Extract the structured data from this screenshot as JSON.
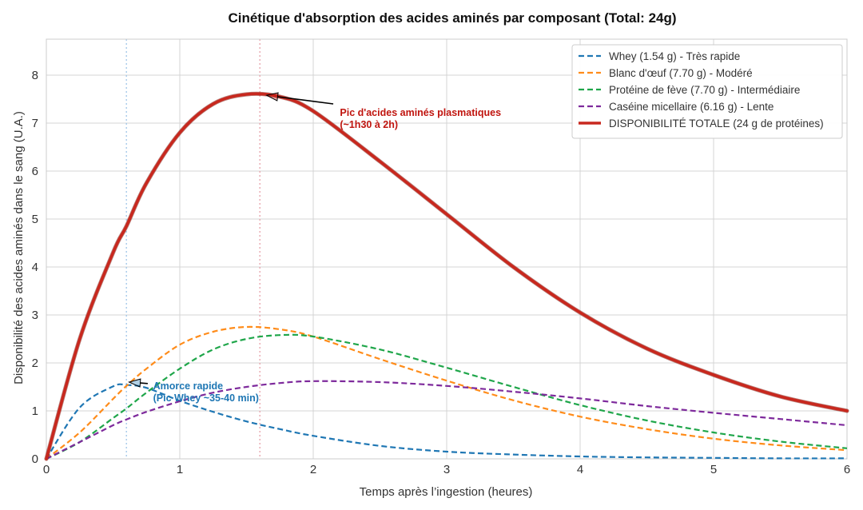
{
  "chart_data": {
    "type": "line",
    "title": "Cinétique d'absorption des acides aminés par composant (Total: 24g)",
    "xlabel": "Temps après l’ingestion (heures)",
    "ylabel": "Disponibilité des acides aminés dans le sang (U.A.)",
    "xlim": [
      0,
      6
    ],
    "ylim": [
      0,
      8.75
    ],
    "xticks": [
      0,
      1,
      2,
      3,
      4,
      5,
      6
    ],
    "yticks": [
      0,
      1,
      2,
      3,
      4,
      5,
      6,
      7,
      8
    ],
    "grid": true,
    "legend_position": "top-right",
    "x": [
      0,
      0.25,
      0.5,
      0.6,
      0.75,
      1.0,
      1.25,
      1.5,
      1.75,
      2.0,
      2.5,
      3.0,
      3.5,
      4.0,
      4.5,
      5.0,
      5.5,
      6.0
    ],
    "series": [
      {
        "name": "Whey (1.54 g) - Très rapide",
        "color": "#1f77b4",
        "style": "dashed",
        "values": [
          0,
          1.07,
          1.51,
          1.54,
          1.48,
          1.21,
          0.98,
          0.78,
          0.62,
          0.48,
          0.27,
          0.15,
          0.09,
          0.05,
          0.03,
          0.02,
          0.01,
          0.01
        ]
      },
      {
        "name": "Blanc d'œuf (7.70 g) - Modéré",
        "color": "#ff8c1a",
        "style": "dashed",
        "values": [
          0,
          0.55,
          1.25,
          1.52,
          1.88,
          2.38,
          2.65,
          2.75,
          2.7,
          2.55,
          2.08,
          1.63,
          1.22,
          0.88,
          0.62,
          0.42,
          0.28,
          0.18
        ]
      },
      {
        "name": "Protéine de fève (7.70 g) - Intermédiaire",
        "color": "#1fa64a",
        "style": "dashed",
        "values": [
          0,
          0.35,
          0.85,
          1.05,
          1.38,
          1.88,
          2.28,
          2.5,
          2.58,
          2.55,
          2.28,
          1.9,
          1.5,
          1.12,
          0.8,
          0.55,
          0.36,
          0.22
        ]
      },
      {
        "name": "Caséine micellaire (6.16 g) - Lente",
        "color": "#7e2a9c",
        "style": "dashed",
        "values": [
          0,
          0.35,
          0.7,
          0.82,
          0.98,
          1.2,
          1.38,
          1.5,
          1.58,
          1.62,
          1.6,
          1.52,
          1.4,
          1.26,
          1.1,
          0.96,
          0.83,
          0.7
        ]
      },
      {
        "name": "DISPONIBILITÉ TOTALE (24 g de protéines)",
        "color": "#c8281e",
        "style": "solid",
        "values": [
          0,
          2.5,
          4.3,
          4.85,
          5.75,
          6.8,
          7.4,
          7.6,
          7.55,
          7.25,
          6.2,
          5.1,
          4.0,
          3.05,
          2.3,
          1.75,
          1.3,
          1.0
        ]
      }
    ],
    "vlines": [
      {
        "x": 0.6,
        "color": "#9fc5e8"
      },
      {
        "x": 1.6,
        "color": "#e6a0a8"
      }
    ],
    "annotations": [
      {
        "lines": [
          "Pic d'acides aminés plasmatiques",
          "(~1h30 à 2h)"
        ],
        "x": 1.65,
        "y": 7.58,
        "text_x": 2.2,
        "text_y": 7.15,
        "color": "#c0150f",
        "cls": "anno-red",
        "label_anchor_x": 2.15,
        "label_anchor_y": 7.4
      },
      {
        "lines": [
          "Amorce rapide",
          "(Pic Whey ~35-40 min)"
        ],
        "x": 0.62,
        "y": 1.6,
        "text_x": 0.8,
        "text_y": 1.45,
        "color": "#1f77b4",
        "cls": "anno-blue",
        "label_anchor_x": 0.76,
        "label_anchor_y": 1.57
      }
    ]
  }
}
